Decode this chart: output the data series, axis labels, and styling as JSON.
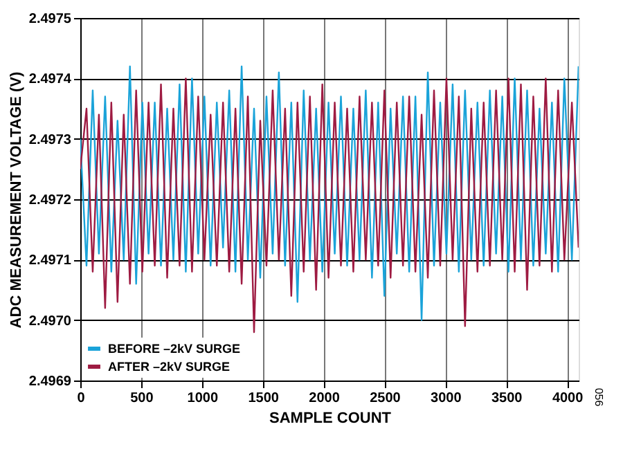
{
  "chart_data": {
    "type": "line",
    "xlabel": "SAMPLE COUNT",
    "ylabel": "ADC MEASUREMENT VOLTAGE (V)",
    "x": [
      0,
      51,
      102,
      153,
      204,
      255,
      306,
      357,
      408,
      459,
      510,
      561,
      612,
      663,
      714,
      765,
      816,
      867,
      918,
      969,
      1020,
      1071,
      1122,
      1173,
      1224,
      1275,
      1326,
      1377,
      1428,
      1479,
      1530,
      1581,
      1632,
      1683,
      1734,
      1785,
      1836,
      1887,
      1938,
      1989,
      2040,
      2091,
      2142,
      2193,
      2244,
      2295,
      2346,
      2397,
      2448,
      2499,
      2550,
      2601,
      2652,
      2703,
      2754,
      2805,
      2856,
      2907,
      2958,
      3009,
      3060,
      3111,
      3162,
      3213,
      3264,
      3315,
      3366,
      3417,
      3468,
      3519,
      3570,
      3621,
      3672,
      3723,
      3774,
      3825,
      3876,
      3927,
      3978,
      4040,
      4095
    ],
    "series": [
      {
        "name": "BEFORE –2kV SURGE",
        "color": "#1aa3d9",
        "values": [
          2.4973,
          2.49709,
          2.49738,
          2.49711,
          2.49737,
          2.49708,
          2.49733,
          2.4971,
          2.49742,
          2.49706,
          2.49736,
          2.49711,
          2.49736,
          2.49709,
          2.49735,
          2.4971,
          2.49739,
          2.49708,
          2.4974,
          2.49711,
          2.49737,
          2.49709,
          2.49736,
          2.49712,
          2.49738,
          2.49708,
          2.49742,
          2.4971,
          2.49735,
          2.49707,
          2.49737,
          2.49711,
          2.49741,
          2.49709,
          2.49736,
          2.49703,
          2.49738,
          2.4971,
          2.49735,
          2.49708,
          2.49736,
          2.49711,
          2.49737,
          2.49709,
          2.49735,
          2.4971,
          2.49738,
          2.49707,
          2.49736,
          2.49704,
          2.49735,
          2.49711,
          2.49737,
          2.49708,
          2.49737,
          2.497,
          2.49741,
          2.49709,
          2.49736,
          2.49711,
          2.49739,
          2.49708,
          2.49738,
          2.4971,
          2.49736,
          2.49709,
          2.49738,
          2.49711,
          2.49737,
          2.49708,
          2.4974,
          2.4971,
          2.49738,
          2.49709,
          2.49735,
          2.49711,
          2.49736,
          2.49708,
          2.4974,
          2.4971,
          2.49742
        ]
      },
      {
        "name": "AFTER –2kV SURGE",
        "color": "#9e1b42",
        "values": [
          2.49725,
          2.49735,
          2.49708,
          2.49734,
          2.49702,
          2.49736,
          2.49703,
          2.49734,
          2.49706,
          2.49738,
          2.49708,
          2.49736,
          2.49709,
          2.49739,
          2.49707,
          2.49735,
          2.49709,
          2.4974,
          2.49708,
          2.49737,
          2.4971,
          2.49734,
          2.49709,
          2.49736,
          2.49708,
          2.49735,
          2.49706,
          2.49737,
          2.49698,
          2.49733,
          2.49709,
          2.49738,
          2.4971,
          2.49735,
          2.49704,
          2.49736,
          2.49708,
          2.49737,
          2.49705,
          2.49739,
          2.49707,
          2.49736,
          2.49709,
          2.49735,
          2.49708,
          2.49737,
          2.4971,
          2.49736,
          2.49709,
          2.49738,
          2.49707,
          2.49736,
          2.49709,
          2.49737,
          2.49708,
          2.49734,
          2.49707,
          2.49738,
          2.49709,
          2.4974,
          2.4971,
          2.49737,
          2.49699,
          2.49735,
          2.49708,
          2.49736,
          2.49709,
          2.49738,
          2.4971,
          2.4974,
          2.49708,
          2.49739,
          2.49705,
          2.49737,
          2.49709,
          2.4974,
          2.49708,
          2.49738,
          2.4971,
          2.49736,
          2.49712
        ]
      }
    ],
    "xlim": [
      0,
      4096
    ],
    "xticks": [
      0,
      500,
      {
        "value": 1000,
        "label": "1000"
      },
      {
        "value": 1500,
        "label": "1500"
      },
      {
        "value": 2000,
        "label": "2000"
      },
      {
        "value": 2500,
        "label": "2500"
      },
      {
        "value": 3000,
        "label": "3000"
      },
      {
        "value": 3500,
        "label": "3500"
      },
      {
        "value": 4000,
        "label": "4000"
      }
    ],
    "ylim": [
      2.4969,
      2.4975
    ],
    "yticks": [
      {
        "value": 2.4969,
        "label": "2.4969"
      },
      {
        "value": 2.497,
        "label": "2.4970"
      },
      {
        "value": 2.4971,
        "label": "2.4971"
      },
      {
        "value": 2.4972,
        "label": "2.4972"
      },
      {
        "value": 2.4973,
        "label": "2.4973"
      },
      {
        "value": 2.4974,
        "label": "2.4974"
      },
      {
        "value": 2.4975,
        "label": "2.4975"
      }
    ],
    "grid": true,
    "legend": "bottom left",
    "marker": "none",
    "line_style": "solid",
    "annotations": [
      "056"
    ]
  }
}
